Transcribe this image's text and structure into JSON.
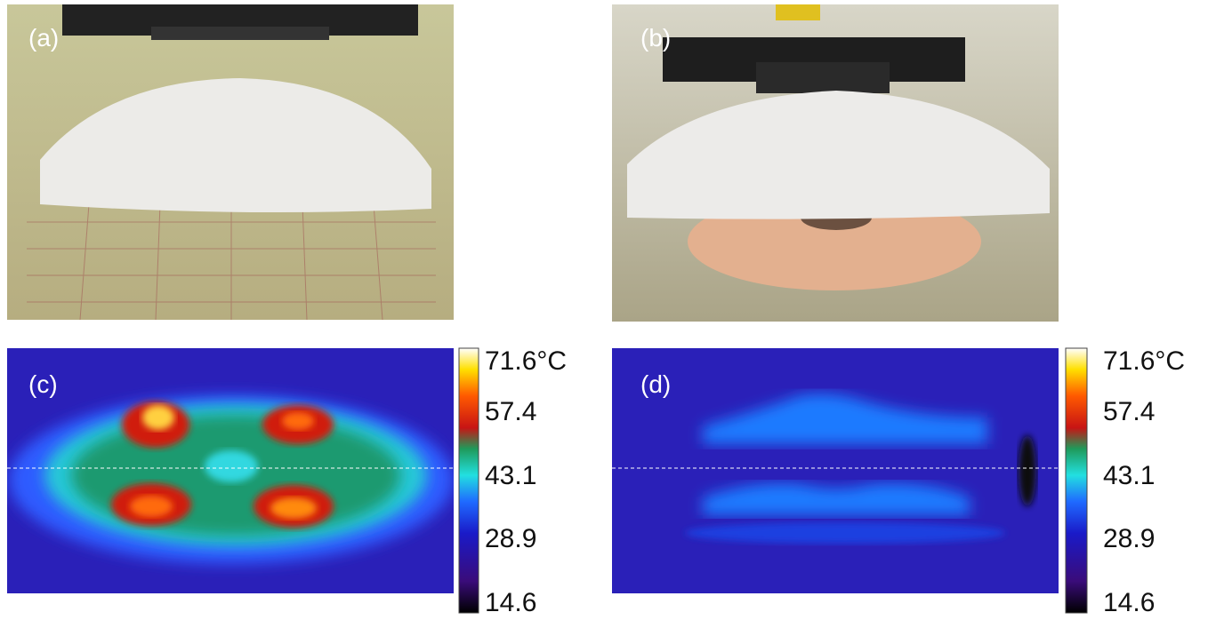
{
  "panels": [
    {
      "label": "(a)"
    },
    {
      "label": "(b)"
    },
    {
      "label": "(c)"
    },
    {
      "label": "(d)"
    }
  ],
  "colorbars": [
    {
      "labels": [
        "71.6°C",
        "57.4",
        "43.1",
        "28.9",
        "14.6"
      ]
    },
    {
      "labels": [
        "71.6°C",
        "57.4",
        "43.1",
        "28.9",
        "14.6"
      ]
    }
  ]
}
